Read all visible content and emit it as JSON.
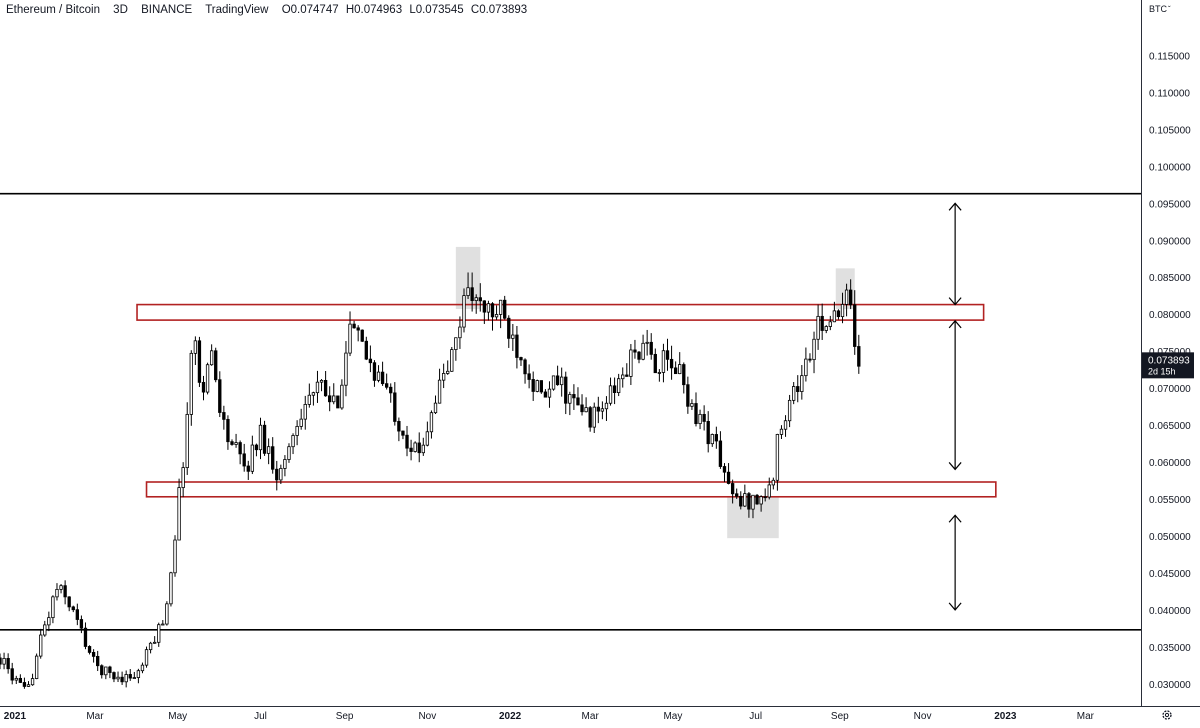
{
  "header": {
    "symbol": "Ethereum / Bitcoin",
    "interval": "3D",
    "exchange": "BINANCE",
    "source": "TradingView",
    "ohlc": {
      "open": "O0.074747",
      "high": "H0.074963",
      "low": "L0.073545",
      "close": "C0.073893"
    }
  },
  "price_axis": {
    "currency": "BTC",
    "dropdown_icon": "chevron-down-icon"
  },
  "last_price": {
    "value": "0.073893",
    "countdown": "2d 15h",
    "color": "#131722"
  },
  "settings_icon": "gear-icon",
  "colors": {
    "zone_border": "#b22222",
    "highlight": "#d6d6d6",
    "line": "#000000",
    "up_body": "#ffffff",
    "down_body": "#000000"
  },
  "chart_data": {
    "type": "candlestick",
    "y_axis": {
      "min": 0.027,
      "max": 0.1225,
      "ticks": [
        "0.115000",
        "0.110000",
        "0.105000",
        "0.100000",
        "0.095000",
        "0.090000",
        "0.085000",
        "0.080000",
        "0.075000",
        "0.070000",
        "0.065000",
        "0.060000",
        "0.055000",
        "0.050000",
        "0.045000",
        "0.040000",
        "0.035000",
        "0.030000"
      ]
    },
    "x_axis": {
      "range": [
        "2020-12-21",
        "2023-04-11"
      ],
      "ticks": [
        {
          "label": "2021",
          "date": "2021-01-01"
        },
        {
          "label": "Mar",
          "date": "2021-03-01"
        },
        {
          "label": "May",
          "date": "2021-05-01"
        },
        {
          "label": "Jul",
          "date": "2021-07-01"
        },
        {
          "label": "Sep",
          "date": "2021-09-01"
        },
        {
          "label": "Nov",
          "date": "2021-11-01"
        },
        {
          "label": "2022",
          "date": "2022-01-01"
        },
        {
          "label": "Mar",
          "date": "2022-03-01"
        },
        {
          "label": "May",
          "date": "2022-05-01"
        },
        {
          "label": "Jul",
          "date": "2022-07-01"
        },
        {
          "label": "Sep",
          "date": "2022-09-01"
        },
        {
          "label": "Nov",
          "date": "2022-11-01"
        },
        {
          "label": "2023",
          "date": "2023-01-01"
        },
        {
          "label": "Mar",
          "date": "2023-03-01"
        }
      ]
    },
    "grid": false,
    "interval_days": 3,
    "first_candle": "2020-12-21",
    "close_path": [
      [
        "2020-12-21",
        0.0335
      ],
      [
        "2021-01-01",
        0.0305
      ],
      [
        "2021-01-10",
        0.0285
      ],
      [
        "2021-01-20",
        0.036
      ],
      [
        "2021-02-01",
        0.043
      ],
      [
        "2021-02-10",
        0.041
      ],
      [
        "2021-02-18",
        0.0375
      ],
      [
        "2021-03-01",
        0.0325
      ],
      [
        "2021-03-15",
        0.031
      ],
      [
        "2021-04-01",
        0.031
      ],
      [
        "2021-04-12",
        0.0355
      ],
      [
        "2021-04-22",
        0.0395
      ],
      [
        "2021-05-01",
        0.0535
      ],
      [
        "2021-05-08",
        0.066
      ],
      [
        "2021-05-12",
        0.078
      ],
      [
        "2021-05-18",
        0.07
      ],
      [
        "2021-05-26",
        0.0745
      ],
      [
        "2021-06-05",
        0.064
      ],
      [
        "2021-06-20",
        0.059
      ],
      [
        "2021-07-01",
        0.064
      ],
      [
        "2021-07-15",
        0.058
      ],
      [
        "2021-08-01",
        0.068
      ],
      [
        "2021-08-15",
        0.07
      ],
      [
        "2021-08-25",
        0.067
      ],
      [
        "2021-09-05",
        0.078
      ],
      [
        "2021-09-15",
        0.075
      ],
      [
        "2021-10-01",
        0.07
      ],
      [
        "2021-10-15",
        0.064
      ],
      [
        "2021-10-25",
        0.0605
      ],
      [
        "2021-11-05",
        0.068
      ],
      [
        "2021-11-20",
        0.0745
      ],
      [
        "2021-12-01",
        0.0845
      ],
      [
        "2021-12-10",
        0.0805
      ],
      [
        "2021-12-25",
        0.08
      ],
      [
        "2022-01-10",
        0.0745
      ],
      [
        "2022-01-25",
        0.068
      ],
      [
        "2022-02-05",
        0.071
      ],
      [
        "2022-02-20",
        0.067
      ],
      [
        "2022-03-05",
        0.066
      ],
      [
        "2022-03-20",
        0.07
      ],
      [
        "2022-04-05",
        0.0755
      ],
      [
        "2022-04-20",
        0.0735
      ],
      [
        "2022-05-05",
        0.0725
      ],
      [
        "2022-05-15",
        0.0675
      ],
      [
        "2022-06-01",
        0.0625
      ],
      [
        "2022-06-15",
        0.0545
      ],
      [
        "2022-07-01",
        0.055
      ],
      [
        "2022-07-12",
        0.056
      ],
      [
        "2022-07-20",
        0.066
      ],
      [
        "2022-08-05",
        0.072
      ],
      [
        "2022-08-20",
        0.08
      ],
      [
        "2022-08-30",
        0.0785
      ],
      [
        "2022-09-07",
        0.0825
      ],
      [
        "2022-09-12",
        0.0775
      ],
      [
        "2022-09-15",
        0.0739
      ]
    ],
    "levels": [
      {
        "price": 0.0963,
        "style": "horizontal-line"
      },
      {
        "price": 0.0373,
        "style": "horizontal-line"
      }
    ],
    "zones": [
      {
        "from": "2021-04-01",
        "to": "2022-12-16",
        "top": 0.0813,
        "bottom": 0.0792
      },
      {
        "from": "2021-04-08",
        "to": "2022-12-25",
        "top": 0.0573,
        "bottom": 0.0553
      }
    ],
    "highlights": [
      {
        "from": "2021-11-22",
        "to": "2021-12-10",
        "top": 0.0891,
        "bottom": 0.0807
      },
      {
        "from": "2022-06-10",
        "to": "2022-07-18",
        "top": 0.0553,
        "bottom": 0.0497
      },
      {
        "from": "2022-08-29",
        "to": "2022-09-12",
        "top": 0.0862,
        "bottom": 0.0807
      }
    ],
    "arrows": [
      {
        "date": "2022-11-25",
        "from": 0.095,
        "to": 0.0813
      },
      {
        "date": "2022-11-25",
        "from": 0.0791,
        "to": 0.059
      },
      {
        "date": "2022-11-25",
        "from": 0.0528,
        "to": 0.04
      }
    ]
  }
}
